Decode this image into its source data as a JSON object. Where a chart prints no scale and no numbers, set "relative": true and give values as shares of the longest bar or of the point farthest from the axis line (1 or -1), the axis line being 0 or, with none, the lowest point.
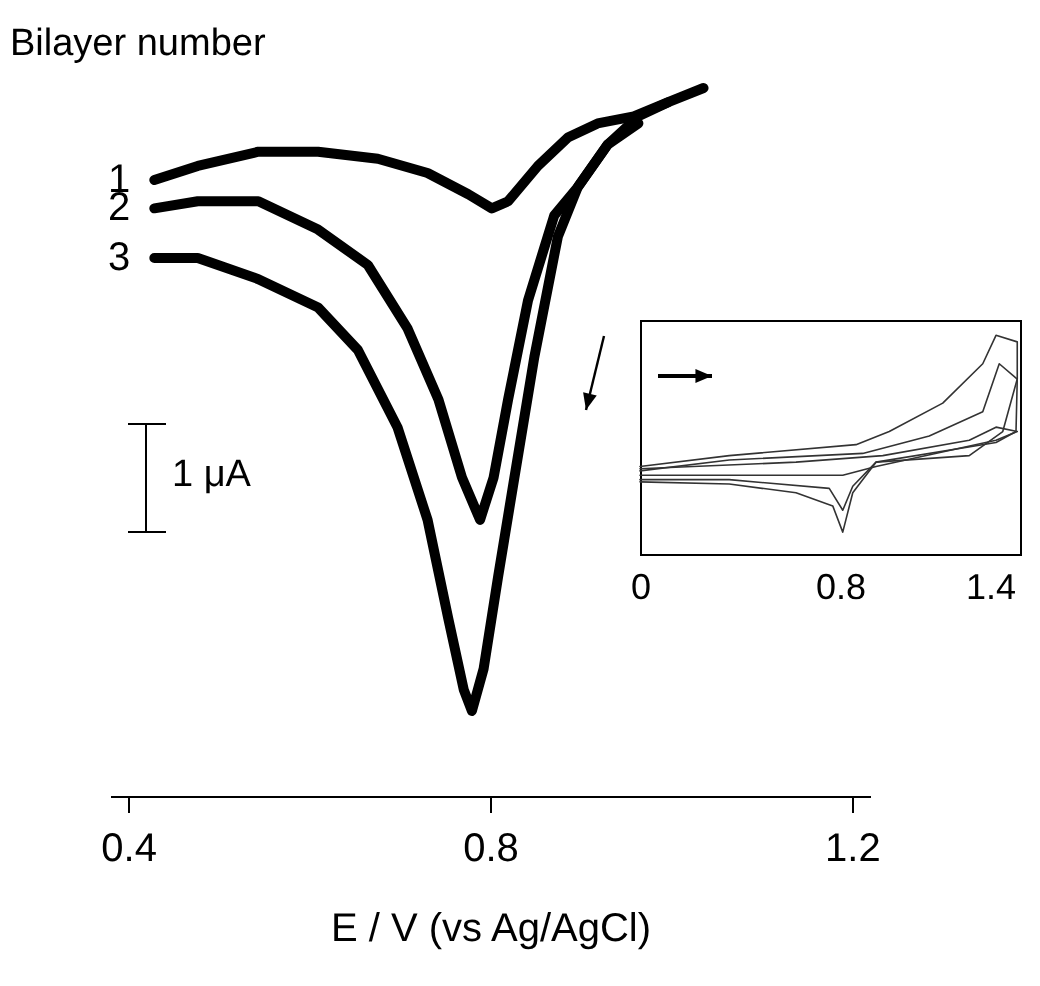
{
  "chart_data": [
    {
      "type": "line",
      "relative": true,
      "legend_title": "Bilayer number",
      "xlabel": "E / V (vs Ag/AgCl)",
      "xlim": [
        0.38,
        1.22
      ],
      "xticks": [
        0.4,
        0.8,
        1.2
      ],
      "tick_labels": "x",
      "annotations": [
        "1 μA"
      ],
      "series": [
        {
          "name": "1",
          "color": "#000000",
          "x": [
            0.429,
            0.477,
            0.544,
            0.61,
            0.676,
            0.731,
            0.776,
            0.802,
            0.82,
            0.853,
            0.886,
            0.919,
            0.959,
            0.997,
            1.036
          ],
          "values": [
            0.87,
            0.89,
            0.91,
            0.91,
            0.9,
            0.88,
            0.85,
            0.83,
            0.84,
            0.89,
            0.93,
            0.95,
            0.96,
            0.98,
            1
          ]
        },
        {
          "name": "2",
          "color": "#000000",
          "x": [
            0.429,
            0.477,
            0.544,
            0.61,
            0.665,
            0.709,
            0.743,
            0.769,
            0.789,
            0.804,
            0.82,
            0.842,
            0.871,
            0.897,
            0.93,
            0.964,
            0.997
          ],
          "values": [
            0.83,
            0.84,
            0.84,
            0.8,
            0.75,
            0.66,
            0.56,
            0.45,
            0.39,
            0.45,
            0.56,
            0.7,
            0.82,
            0.86,
            0.92,
            0.96,
            0.98
          ]
        },
        {
          "name": "3",
          "color": "#000000",
          "x": [
            0.429,
            0.477,
            0.544,
            0.61,
            0.654,
            0.698,
            0.731,
            0.754,
            0.771,
            0.78,
            0.793,
            0.809,
            0.827,
            0.849,
            0.875,
            0.897,
            0.93,
            0.964
          ],
          "values": [
            0.76,
            0.76,
            0.73,
            0.69,
            0.63,
            0.52,
            0.39,
            0.25,
            0.15,
            0.12,
            0.18,
            0.31,
            0.45,
            0.62,
            0.79,
            0.86,
            0.92,
            0.95
          ]
        }
      ]
    },
    {
      "type": "line",
      "relative": true,
      "xlim": [
        0,
        1.52
      ],
      "xticks": [
        {
          "value": 0,
          "label": "0"
        },
        0.8,
        1.4
      ],
      "tick_labels": "x",
      "series": [
        {
          "color": "#333333",
          "x": [
            0,
            0.357,
            0.864,
            0.997,
            1.211,
            1.371,
            1.424,
            1.509,
            1.509,
            1.451,
            1.317,
            0.944,
            0.851,
            0.811,
            0.771,
            0.624,
            0.357,
            0
          ],
          "values": [
            0.4,
            0.45,
            0.5,
            0.56,
            0.69,
            0.87,
            1,
            0.97,
            0.8,
            0.56,
            0.45,
            0.42,
            0.28,
            0.1,
            0.22,
            0.28,
            0.32,
            0.33
          ]
        },
        {
          "color": "#333333",
          "x": [
            0,
            0.357,
            0.891,
            1.157,
            1.371,
            1.437,
            1.509,
            1.504,
            1.424,
            0.944,
            0.851,
            0.811,
            0.757,
            0.357,
            0
          ],
          "values": [
            0.38,
            0.43,
            0.46,
            0.54,
            0.65,
            0.87,
            0.8,
            0.56,
            0.51,
            0.42,
            0.31,
            0.2,
            0.3,
            0.34,
            0.34
          ]
        },
        {
          "color": "#333333",
          "x": [
            0,
            0.624,
            0.971,
            1.317,
            1.424,
            1.509,
            1.424,
            0.944,
            0.811,
            0.357,
            0
          ],
          "values": [
            0.39,
            0.42,
            0.45,
            0.52,
            0.58,
            0.56,
            0.52,
            0.4,
            0.36,
            0.36,
            0.36
          ]
        }
      ]
    }
  ]
}
